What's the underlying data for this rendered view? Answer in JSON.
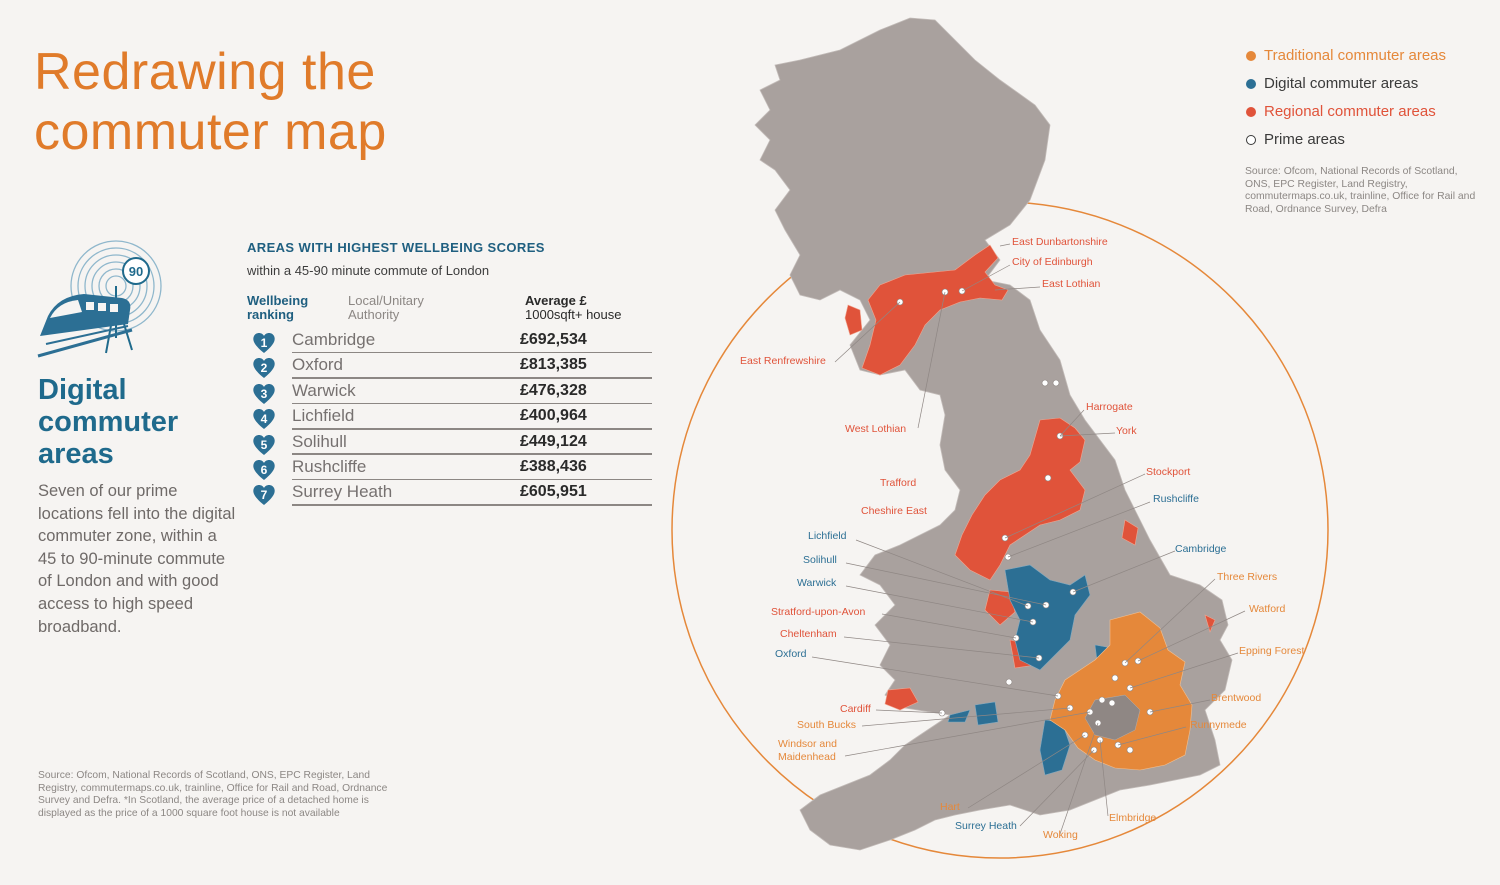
{
  "title_line1": "Redrawing the",
  "title_line2": "commuter map",
  "icon_badge": "90",
  "side": {
    "heading_line1": "Digital",
    "heading_line2": "commuter",
    "heading_line3": "areas",
    "text": "Seven of our prime locations fell into the digital commuter zone, within a 45 to 90-minute commute of London and with good access to high speed broadband."
  },
  "table": {
    "title": "AREAS WITH HIGHEST WELLBEING SCORES",
    "subtitle": "within a 45-90 minute commute of London",
    "col1_line1": "Wellbeing",
    "col1_line2": "ranking",
    "col2_line1": "Local/Unitary",
    "col2_line2": "Authority",
    "col3_line1": "Average £",
    "col3_line2": "1000sqft+ house",
    "rows": [
      {
        "rank": "1",
        "name": "Cambridge",
        "price": "£692,534"
      },
      {
        "rank": "2",
        "name": "Oxford",
        "price": "£813,385"
      },
      {
        "rank": "3",
        "name": "Warwick",
        "price": "£476,328"
      },
      {
        "rank": "4",
        "name": "Lichfield",
        "price": "£400,964"
      },
      {
        "rank": "5",
        "name": "Solihull",
        "price": "£449,124"
      },
      {
        "rank": "6",
        "name": "Rushcliffe",
        "price": "£388,436"
      },
      {
        "rank": "7",
        "name": "Surrey Heath",
        "price": "£605,951"
      }
    ]
  },
  "source_left": "Source: Ofcom, National Records of Scotland, ONS, EPC Register, Land Registry, commutermaps.co.uk, trainline, Office for Rail and Road, Ordnance Survey and Defra. *In Scotland, the average price of a detached home is displayed as the price of a 1000 square foot house is not available",
  "legend": [
    {
      "label": "Traditional commuter areas",
      "color": "#e5883a",
      "text_color": "#e5883a"
    },
    {
      "label": "Digital commuter areas",
      "color": "#2c6f94",
      "text_color": "#3a3a3a"
    },
    {
      "label": "Regional commuter areas",
      "color": "#e0533a",
      "text_color": "#e0533a"
    },
    {
      "label": "Prime areas",
      "color": "#ffffff",
      "text_color": "#3a3a3a"
    }
  ],
  "source_right": "Source: Ofcom, National Records of Scotland, ONS, EPC Register, Land Registry, commutermaps.co.uk, trainline, Office for Rail and Road, Ordnance Survey, Defra",
  "colors": {
    "traditional": "#e5883a",
    "digital": "#2c6f94",
    "regional": "#e0533a",
    "land": "#a9a19e",
    "circle": "#e5883a"
  },
  "map_labels": {
    "east_dunbartonshire": "East Dunbartonshire",
    "city_of_edinburgh": "City of Edinburgh",
    "east_lothian": "East Lothian",
    "east_renfrewshire": "East Renfrewshire",
    "west_lothian": "West Lothian",
    "harrogate": "Harrogate",
    "york": "York",
    "trafford": "Trafford",
    "stockport": "Stockport",
    "cheshire_east": "Cheshire East",
    "rushcliffe": "Rushcliffe",
    "lichfield": "Lichfield",
    "solihull": "Solihull",
    "cambridge": "Cambridge",
    "warwick": "Warwick",
    "three_rivers": "Three Rivers",
    "stratford": "Stratford-upon-Avon",
    "watford": "Watford",
    "cheltenham": "Cheltenham",
    "epping_forest": "Epping Forest",
    "oxford": "Oxford",
    "cardiff": "Cardiff",
    "brentwood": "Brentwood",
    "south_bucks": "South Bucks",
    "runnymede": "Runnymede",
    "windsor_line1": "Windsor and",
    "windsor_line2": "Maidenhead",
    "hart": "Hart",
    "elmbridge": "Elmbridge",
    "surrey_heath": "Surrey Heath",
    "woking": "Woking"
  }
}
